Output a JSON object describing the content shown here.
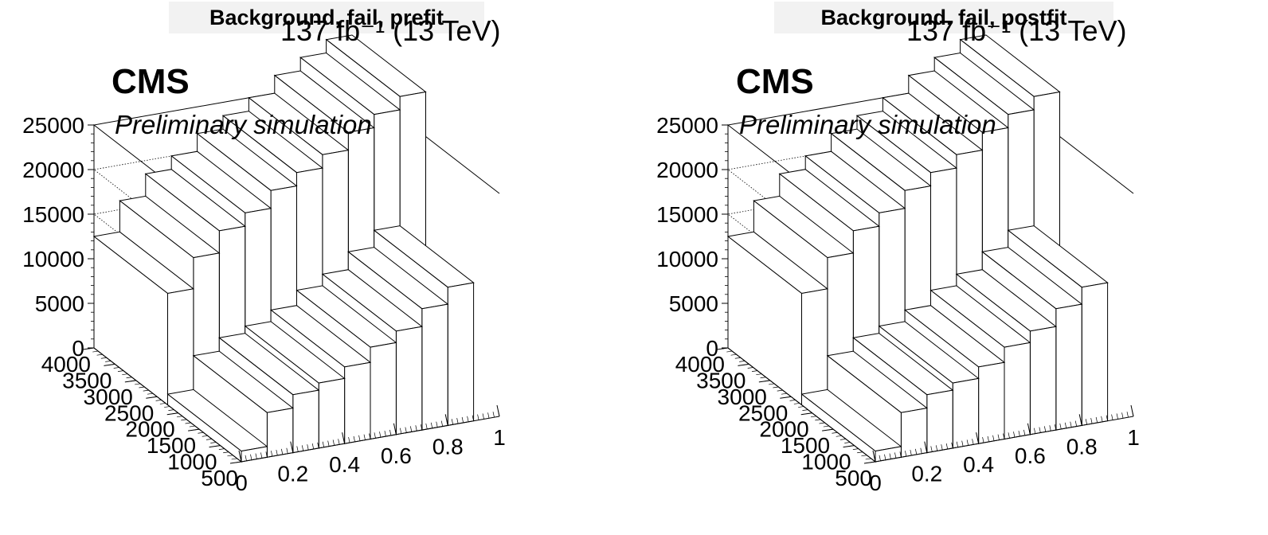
{
  "chart_data": [
    {
      "type": "bar3d",
      "title": "Background, fail, prefit",
      "lumi_text": "137 fb⁻¹ (13 TeV)",
      "cms_label": "CMS",
      "extra_label": "Preliminary simulation",
      "x_ticks": [
        "0",
        "0.2",
        "0.4",
        "0.6",
        "0.8",
        "1"
      ],
      "y_ticks": [
        "500",
        "1000",
        "1500",
        "2000",
        "2500",
        "3000",
        "3500",
        "4000"
      ],
      "z_ticks": [
        "0",
        "5000",
        "10000",
        "15000",
        "20000",
        "25000"
      ],
      "xlim": [
        0,
        1
      ],
      "ylim": [
        500,
        4000
      ],
      "zlim": [
        0,
        25000
      ],
      "x_bins": [
        0,
        0.1,
        0.2,
        0.3,
        0.4,
        0.5,
        0.6,
        0.7,
        0.8,
        0.9,
        1.0
      ],
      "back_row_values": [
        12500,
        16000,
        18500,
        20000,
        22000,
        23500,
        25000,
        27000,
        28500,
        30000
      ],
      "front_row_values": [
        1200,
        5000,
        6500,
        7300,
        8600,
        10300,
        11600,
        13600,
        15500,
        0
      ],
      "grid": true
    },
    {
      "type": "bar3d",
      "title": "Background, fail, postfit",
      "lumi_text": "137 fb⁻¹ (13 TeV)",
      "cms_label": "CMS",
      "extra_label": "Preliminary simulation",
      "x_ticks": [
        "0",
        "0.2",
        "0.4",
        "0.6",
        "0.8",
        "1"
      ],
      "y_ticks": [
        "500",
        "1000",
        "1500",
        "2000",
        "2500",
        "3000",
        "3500",
        "4000"
      ],
      "z_ticks": [
        "0",
        "5000",
        "10000",
        "15000",
        "20000",
        "25000"
      ],
      "xlim": [
        0,
        1
      ],
      "ylim": [
        500,
        4000
      ],
      "zlim": [
        0,
        25000
      ],
      "x_bins": [
        0,
        0.1,
        0.2,
        0.3,
        0.4,
        0.5,
        0.6,
        0.7,
        0.8,
        0.9,
        1.0
      ],
      "back_row_values": [
        12500,
        16000,
        18500,
        20000,
        22000,
        23500,
        25000,
        27000,
        28500,
        30000
      ],
      "front_row_values": [
        1200,
        5000,
        6500,
        7300,
        8600,
        10300,
        11600,
        13600,
        15500,
        0
      ],
      "grid": true
    }
  ]
}
